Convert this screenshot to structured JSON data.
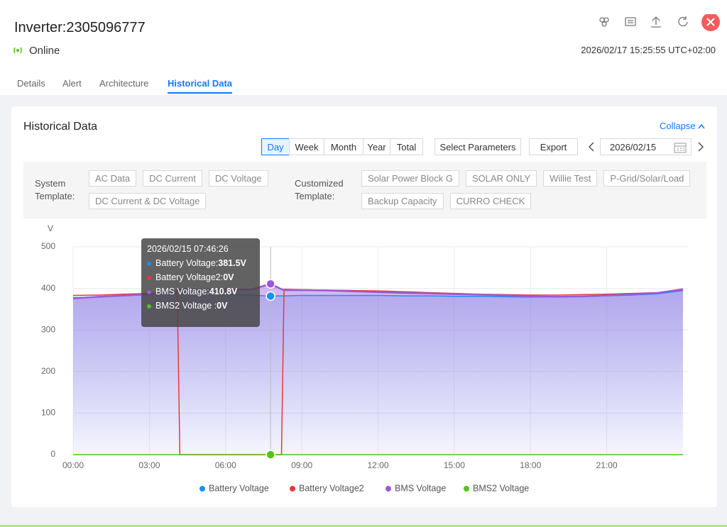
{
  "header": {
    "title": "Inverter:2305096777",
    "status": "Online",
    "timestamp": "2026/02/17 15:25:55 UTC+02:00"
  },
  "tabs": {
    "items": [
      "Details",
      "Alert",
      "Architecture",
      "Historical Data"
    ],
    "active": 3
  },
  "card": {
    "title": "Historical Data",
    "collapse": "Collapse",
    "periods": [
      "Day",
      "Week",
      "Month",
      "Year",
      "Total"
    ],
    "active_period": 0,
    "select_parameters": "Select Parameters",
    "export": "Export",
    "date": "2026/02/15"
  },
  "templates": {
    "system_label": "System Template:",
    "system": [
      "AC Data",
      "DC Current",
      "DC Voltage",
      "DC Current & DC Voltage"
    ],
    "customized_label": "Customized Template:",
    "customized": [
      "Solar Power Block G",
      "SOLAR ONLY",
      "Willie Test",
      "P-Grid/Solar/Load",
      "Backup Capacity",
      "CURRO CHECK"
    ]
  },
  "chart_data": {
    "type": "line",
    "y_label": "V",
    "x": [
      0,
      1,
      2,
      3,
      4,
      4.1,
      4.2,
      5,
      6,
      7,
      7.77,
      8.2,
      8.3,
      9,
      10,
      11,
      12,
      13,
      14,
      15,
      16,
      17,
      18,
      19,
      20,
      21,
      22,
      23,
      24
    ],
    "xlim": [
      0,
      24
    ],
    "xticks": [
      {
        "value": 0,
        "label": "00:00"
      },
      {
        "value": 3,
        "label": "03:00"
      },
      {
        "value": 6,
        "label": "06:00"
      },
      {
        "value": 9,
        "label": "09:00"
      },
      {
        "value": 12,
        "label": "12:00"
      },
      {
        "value": 15,
        "label": "15:00"
      },
      {
        "value": 18,
        "label": "18:00"
      },
      {
        "value": 21,
        "label": "21:00"
      }
    ],
    "ylim": [
      0,
      500
    ],
    "yticks": [
      0,
      100,
      200,
      300,
      400,
      500
    ],
    "grid": true,
    "legend": "bottom",
    "series": [
      {
        "name": "Battery Voltage",
        "color": "#1890ff",
        "area": true,
        "values": [
          378,
          379,
          382,
          385,
          388,
          388,
          388,
          388,
          386,
          384,
          381.5,
          382,
          382,
          383,
          383,
          383,
          383,
          382,
          382,
          381,
          381,
          380,
          379,
          380,
          380,
          382,
          384,
          387,
          395
        ]
      },
      {
        "name": "Battery Voltage2",
        "color": "#e8383d",
        "area": false,
        "values": [
          383,
          384,
          386,
          388,
          390,
          390,
          0,
          0,
          0,
          0,
          0,
          0,
          398,
          397,
          396,
          395,
          394,
          392,
          390,
          388,
          386,
          385,
          384,
          384,
          385,
          386,
          388,
          390,
          396
        ]
      },
      {
        "name": "BMS Voltage",
        "color": "#9b59d6",
        "area": true,
        "values": [
          376,
          380,
          383,
          386,
          392,
          395,
          398,
          396,
          398,
          397,
          410.8,
          398,
          396,
          396,
          395,
          393,
          391,
          389,
          388,
          386,
          385,
          383,
          381,
          380,
          381,
          383,
          386,
          389,
          398
        ]
      },
      {
        "name": "BMS2 Voltage",
        "color": "#52c41a",
        "area": false,
        "values": [
          0,
          0,
          0,
          0,
          0,
          0,
          0,
          0,
          0,
          0,
          0,
          0,
          0,
          0,
          0,
          0,
          0,
          0,
          0,
          0,
          0,
          0,
          0,
          0,
          0,
          0,
          0,
          0,
          0
        ]
      }
    ],
    "tooltip": {
      "index": 10,
      "title": "2026/02/15 07:46:26",
      "items": [
        {
          "label": "Battery Voltage:",
          "value": "381.5V"
        },
        {
          "label": "Battery Voltage2:",
          "value": "0V"
        },
        {
          "label": "BMS Voltage:",
          "value": "410.8V"
        },
        {
          "label": "BMS2 Voltage :",
          "value": "0V"
        }
      ]
    }
  }
}
